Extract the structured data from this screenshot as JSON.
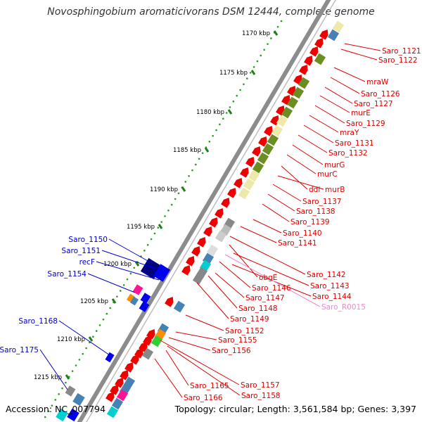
{
  "title": "Novosphingobium aromaticivorans DSM 12444, complete genome",
  "footer": {
    "accession": "Accession: NC_007794",
    "summary": "Topology: circular; Length: 3,561,584 bp; Genes: 3,397"
  },
  "colors": {
    "backbone": "#8c8c8c",
    "ruler_dots": "#2a9b2a",
    "ruler_ticks": "#1f7f1f",
    "forward_label": "#0000cc",
    "reverse_label": "#dd0000",
    "rna_label": "#ee88cc",
    "cds_red": "#ee0000",
    "cds_olive": "#6b8e23",
    "cds_khaki": "#eee8aa",
    "cds_steelblue": "#4682b4",
    "cds_navy": "#000080",
    "cds_blue": "#0000ee"
  },
  "ruler_ticks": [
    "1170 kbp",
    "1175 kbp",
    "1180 kbp",
    "1185 kbp",
    "1190 kbp",
    "1195 kbp",
    "1200 kbp",
    "1205 kbp",
    "1210 kbp",
    "1215 kbp"
  ],
  "forward_labels": [
    "Saro_1150",
    "Saro_1151",
    "recF",
    "Saro_1154",
    "Saro_1168",
    "Saro_1175"
  ],
  "reverse_labels": [
    "Saro_1121",
    "Saro_1122",
    "mraW",
    "Saro_1126",
    "Saro_1127",
    "murE",
    "Saro_1129",
    "mraY",
    "Saro_1131",
    "Saro_1132",
    "murG",
    "murC",
    "ddl",
    "murB",
    "Saro_1137",
    "Saro_1138",
    "Saro_1139",
    "Saro_1140",
    "Saro_1141",
    "Saro_1142",
    "obgE",
    "Saro_1143",
    "Saro_1146",
    "Saro_1144",
    "Saro_1147",
    "Saro_R0015",
    "Saro_1148",
    "Saro_1149",
    "Saro_1152",
    "Saro_1155",
    "Saro_1156",
    "Saro_1157",
    "Saro_1165",
    "Saro_1158",
    "Saro_1166"
  ],
  "rna_labels": [
    "Saro_R0015"
  ]
}
